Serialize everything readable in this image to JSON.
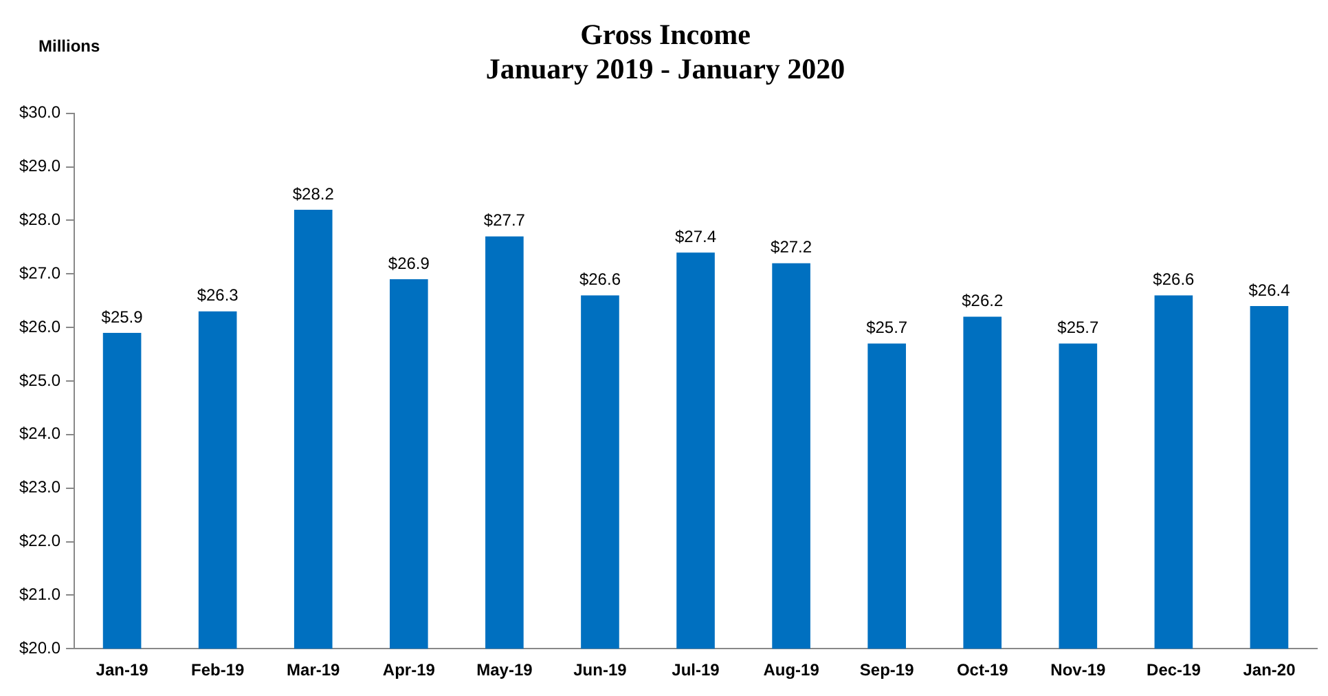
{
  "chart_data": {
    "type": "bar",
    "title": "Gross Income",
    "subtitle": "January 2019 - January 2020",
    "ylabel": "Millions",
    "categories": [
      "Jan-19",
      "Feb-19",
      "Mar-19",
      "Apr-19",
      "May-19",
      "Jun-19",
      "Jul-19",
      "Aug-19",
      "Sep-19",
      "Oct-19",
      "Nov-19",
      "Dec-19",
      "Jan-20"
    ],
    "values": [
      25.9,
      26.3,
      28.2,
      26.9,
      27.7,
      26.6,
      27.4,
      27.2,
      25.7,
      26.2,
      25.7,
      26.6,
      26.4
    ],
    "value_labels": [
      "$25.9",
      "$26.3",
      "$28.2",
      "$26.9",
      "$27.7",
      "$26.6",
      "$27.4",
      "$27.2",
      "$25.7",
      "$26.2",
      "$25.7",
      "$26.6",
      "$26.4"
    ],
    "color": "#0070c0",
    "ylim": [
      20,
      30
    ],
    "yticks": [
      {
        "value": 20,
        "label": "$20.0"
      },
      {
        "value": 21,
        "label": "$21.0"
      },
      {
        "value": 22,
        "label": "$22.0"
      },
      {
        "value": 23,
        "label": "$23.0"
      },
      {
        "value": 24,
        "label": "$24.0"
      },
      {
        "value": 25,
        "label": "$25.0"
      },
      {
        "value": 26,
        "label": "$26.0"
      },
      {
        "value": 27,
        "label": "$27.0"
      },
      {
        "value": 28,
        "label": "$28.0"
      },
      {
        "value": 29,
        "label": "$29.0"
      },
      {
        "value": 30,
        "label": "$30.0"
      }
    ],
    "grid": false,
    "legend": false
  }
}
